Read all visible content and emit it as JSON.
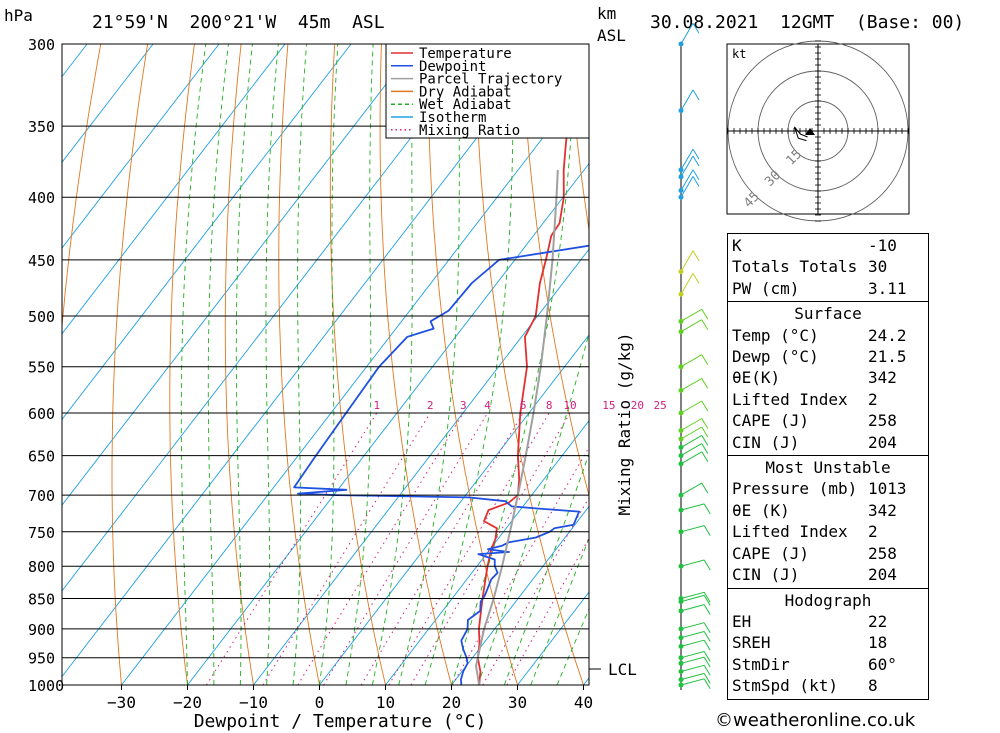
{
  "header": {
    "location": "21°59'N  200°21'W  45m  ASL",
    "datetime": "30.08.2021  12GMT  (Base: 00)",
    "hpa_label": "hPa",
    "km_label": "km",
    "asl_label": "ASL"
  },
  "chart_data": {
    "type": "line",
    "subtype": "skew-T log-P diagram",
    "xlabel": "Dewpoint / Temperature (°C)",
    "ylabel": "hPa",
    "y2label": "Mixing Ratio (g/kg)",
    "xlim": [
      -40,
      40
    ],
    "ylim": [
      1000,
      300
    ],
    "y_scale": "log",
    "x_ticks": [
      -30,
      -20,
      -10,
      0,
      10,
      20,
      30,
      40
    ],
    "y_ticks": [
      300,
      350,
      400,
      450,
      500,
      550,
      600,
      650,
      700,
      750,
      800,
      850,
      900,
      950,
      1000
    ],
    "mixing_ratio_labels": [
      "1",
      "2",
      "3",
      "4",
      "6",
      "8",
      "10",
      "15",
      "20",
      "25"
    ],
    "lcl_label": "LCL",
    "lcl_pressure": 965,
    "legend": {
      "placement": "top-right",
      "items": [
        {
          "name": "Temperature",
          "color": "#e03030",
          "style": "solid"
        },
        {
          "name": "Dewpoint",
          "color": "#2050e0",
          "style": "solid"
        },
        {
          "name": "Parcel Trajectory",
          "color": "#a0a0a0",
          "style": "solid"
        },
        {
          "name": "Dry Adiabat",
          "color": "#e07820",
          "style": "solid"
        },
        {
          "name": "Wet Adiabat",
          "color": "#20b020",
          "style": "dashed"
        },
        {
          "name": "Isotherm",
          "color": "#20a0e0",
          "style": "solid"
        },
        {
          "name": "Mixing Ratio",
          "color": "#d02080",
          "style": "dotted"
        }
      ]
    },
    "series": [
      {
        "name": "Temperature",
        "color": "#e03030",
        "points": [
          [
            1000,
            24.2
          ],
          [
            975,
            22.8
          ],
          [
            950,
            20.8
          ],
          [
            925,
            19.4
          ],
          [
            900,
            17.6
          ],
          [
            850,
            14.6
          ],
          [
            800,
            11.6
          ],
          [
            775,
            10.2
          ],
          [
            760,
            9.6
          ],
          [
            745,
            8.6
          ],
          [
            735,
            5.8
          ],
          [
            720,
            5.2
          ],
          [
            710,
            7.4
          ],
          [
            700,
            7.9
          ],
          [
            680,
            6.3
          ],
          [
            650,
            3.3
          ],
          [
            600,
            -1.3
          ],
          [
            550,
            -5.7
          ],
          [
            520,
            -9.5
          ],
          [
            500,
            -10.3
          ],
          [
            470,
            -13.5
          ],
          [
            450,
            -15.3
          ],
          [
            430,
            -17.3
          ],
          [
            420,
            -17.5
          ],
          [
            400,
            -19.9
          ],
          [
            380,
            -23.1
          ],
          [
            360,
            -26.1
          ],
          [
            350,
            -27.5
          ],
          [
            330,
            -31.5
          ],
          [
            300,
            -37.3
          ]
        ]
      },
      {
        "name": "Dewpoint",
        "color": "#2050e0",
        "points": [
          [
            1000,
            21.5
          ],
          [
            990,
            20.8
          ],
          [
            975,
            20.2
          ],
          [
            960,
            19.9
          ],
          [
            950,
            19.1
          ],
          [
            935,
            17.6
          ],
          [
            920,
            16.3
          ],
          [
            900,
            15.9
          ],
          [
            885,
            14.9
          ],
          [
            870,
            15.7
          ],
          [
            855,
            14.7
          ],
          [
            845,
            14.6
          ],
          [
            820,
            13.7
          ],
          [
            810,
            13.9
          ],
          [
            800,
            12.7
          ],
          [
            790,
            11.9
          ],
          [
            782,
            8.8
          ],
          [
            779,
            13.2
          ],
          [
            775,
            9.7
          ],
          [
            770,
            11.4
          ],
          [
            765,
            12.0
          ],
          [
            758,
            15.6
          ],
          [
            750,
            17.0
          ],
          [
            745,
            17.3
          ],
          [
            740,
            19.8
          ],
          [
            722,
            19.1
          ],
          [
            718,
            12.7
          ],
          [
            715,
            8.3
          ],
          [
            708,
            6.7
          ],
          [
            703,
            0.7
          ],
          [
            700,
            -19.6
          ],
          [
            698,
            -25.6
          ],
          [
            693,
            -18.7
          ],
          [
            690,
            -26.9
          ],
          [
            650,
            -27.3
          ],
          [
            600,
            -27.7
          ],
          [
            550,
            -28.1
          ],
          [
            520,
            -27.3
          ],
          [
            512,
            -24.3
          ],
          [
            505,
            -25.6
          ],
          [
            495,
            -24.1
          ],
          [
            470,
            -23.8
          ],
          [
            450,
            -22.4
          ],
          [
            430,
            -2.0
          ],
          [
            400,
            -5.8
          ],
          [
            380,
            -2.5
          ],
          [
            370,
            1.1
          ],
          [
            365,
            2.9
          ],
          [
            350,
            2.4
          ],
          [
            340,
            0.9
          ],
          [
            330,
            -5.0
          ],
          [
            320,
            -4.0
          ],
          [
            315,
            -9.3
          ],
          [
            310,
            -8.5
          ],
          [
            300,
            -8.8
          ]
        ]
      },
      {
        "name": "Parcel Trajectory",
        "color": "#a0a0a0",
        "points": [
          [
            1000,
            24.2
          ],
          [
            965,
            21.5
          ],
          [
            900,
            18.4
          ],
          [
            850,
            16.3
          ],
          [
            800,
            13.8
          ],
          [
            750,
            11.0
          ],
          [
            700,
            7.9
          ],
          [
            650,
            4.5
          ],
          [
            600,
            0.7
          ],
          [
            550,
            -3.6
          ],
          [
            500,
            -8.6
          ],
          [
            450,
            -14.3
          ],
          [
            400,
            -21.0
          ],
          [
            380,
            -24.0
          ]
        ]
      }
    ],
    "wind_profile": {
      "label": "wind barbs",
      "levels": [
        1000,
        990,
        975,
        960,
        950,
        930,
        915,
        900,
        870,
        855,
        850,
        800,
        750,
        720,
        700,
        660,
        650,
        640,
        630,
        620,
        600,
        575,
        550,
        515,
        505,
        480,
        460,
        395,
        400,
        380,
        385,
        340,
        300
      ]
    },
    "hodograph": {
      "unit_label": "kt",
      "ring_labels": [
        "15",
        "30",
        "45"
      ],
      "points": [
        [
          60,
          4
        ],
        [
          80,
          6
        ],
        [
          100,
          8
        ],
        [
          70,
          7
        ],
        [
          50,
          5
        ]
      ]
    }
  },
  "indices": {
    "general": [
      {
        "label": "K",
        "value": "-10"
      },
      {
        "label": "Totals Totals",
        "value": "30"
      },
      {
        "label": "PW (cm)",
        "value": "3.11"
      }
    ],
    "surface": {
      "title": "Surface",
      "rows": [
        {
          "label": "Temp (°C)",
          "value": "24.2"
        },
        {
          "label": "Dewp (°C)",
          "value": "21.5"
        },
        {
          "label": "θE(K)",
          "value": "342"
        },
        {
          "label": "Lifted Index",
          "value": "2"
        },
        {
          "label": "CAPE (J)",
          "value": "258"
        },
        {
          "label": "CIN (J)",
          "value": "204"
        }
      ]
    },
    "most_unstable": {
      "title": "Most Unstable",
      "rows": [
        {
          "label": "Pressure (mb)",
          "value": "1013"
        },
        {
          "label": "θE (K)",
          "value": "342"
        },
        {
          "label": "Lifted Index",
          "value": "2"
        },
        {
          "label": "CAPE (J)",
          "value": "258"
        },
        {
          "label": "CIN (J)",
          "value": "204"
        }
      ]
    },
    "hodograph": {
      "title": "Hodograph",
      "rows": [
        {
          "label": "EH",
          "value": "22"
        },
        {
          "label": "SREH",
          "value": "18"
        },
        {
          "label": "StmDir",
          "value": "60°"
        },
        {
          "label": "StmSpd (kt)",
          "value": "8"
        }
      ]
    }
  },
  "footer": {
    "copyright": "©weatheronline.co.uk"
  }
}
